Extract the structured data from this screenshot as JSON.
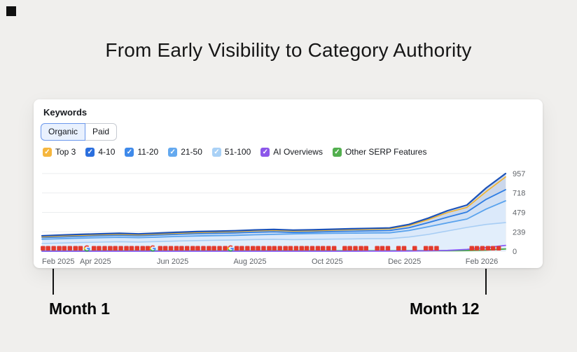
{
  "page": {
    "title": "From Early Visibility to Category Authority",
    "background": "#f0efed"
  },
  "icons": {
    "checkbox_check": "✓"
  },
  "card": {
    "header": "Keywords",
    "tabs": [
      {
        "label": "Organic",
        "active": true
      },
      {
        "label": "Paid",
        "active": false
      }
    ],
    "legend": [
      {
        "label": "Top 3",
        "color": "#F5B63E"
      },
      {
        "label": "4-10",
        "color": "#2B6FDE"
      },
      {
        "label": "11-20",
        "color": "#3F8AEA"
      },
      {
        "label": "21-50",
        "color": "#64A9EF"
      },
      {
        "label": "51-100",
        "color": "#A9D1F6"
      },
      {
        "label": "AI Overviews",
        "color": "#8C57EA"
      },
      {
        "label": "Other SERP Features",
        "color": "#52AF4E"
      }
    ]
  },
  "chart_data": {
    "type": "area",
    "title": "",
    "xlabel": "",
    "ylabel": "",
    "x_labels": [
      "Feb 2025",
      "Apr 2025",
      "Jun 2025",
      "Aug 2025",
      "Oct 2025",
      "Dec 2025",
      "Feb 2026"
    ],
    "y_ticks": [
      0,
      239,
      479,
      718,
      957
    ],
    "ylim": [
      0,
      957
    ],
    "grid": "horizontal",
    "legend_position": "top",
    "series": [
      {
        "name": "4-10",
        "color": "#1D53B8",
        "width": 2.2,
        "band_fill": "#CBD7EB",
        "values": [
          190,
          200,
          208,
          215,
          221,
          214,
          223,
          234,
          242,
          247,
          253,
          262,
          269,
          260,
          264,
          271,
          277,
          282,
          287,
          330,
          408,
          500,
          569,
          780,
          957
        ]
      },
      {
        "name": "Top 3",
        "color": "#F2B32B",
        "width": 1.6,
        "band_fill": null,
        "values": [
          178,
          188,
          196,
          203,
          209,
          202,
          211,
          222,
          230,
          235,
          241,
          250,
          257,
          248,
          252,
          259,
          265,
          270,
          275,
          316,
          390,
          478,
          540,
          735,
          915
        ]
      },
      {
        "name": "11-20",
        "color": "#2E7DE3",
        "width": 1.8,
        "band_fill": "#D2E1F5",
        "values": [
          168,
          176,
          184,
          191,
          197,
          191,
          199,
          209,
          216,
          221,
          226,
          234,
          240,
          232,
          236,
          242,
          247,
          251,
          255,
          290,
          353,
          420,
          483,
          640,
          758
        ]
      },
      {
        "name": "21-50",
        "color": "#5AA3ED",
        "width": 1.8,
        "band_fill": "#DBE9FA",
        "values": [
          147,
          154,
          161,
          167,
          172,
          167,
          174,
          182,
          188,
          192,
          196,
          203,
          208,
          214,
          218,
          221,
          223,
          225,
          227,
          255,
          302,
          350,
          397,
          520,
          621
        ]
      },
      {
        "name": "51-100",
        "color": "#A7CDF4",
        "width": 1.6,
        "band_fill": "#E2EEFB",
        "values": [
          95,
          101,
          107,
          112,
          117,
          113,
          119,
          126,
          131,
          135,
          139,
          144,
          147,
          143,
          146,
          149,
          152,
          154,
          156,
          175,
          207,
          250,
          293,
          330,
          353
        ]
      },
      {
        "name": "AI Overviews",
        "color": "#8B5CF6",
        "width": 1.8,
        "band_fill": null,
        "values": [
          0,
          0,
          0,
          0,
          0,
          0,
          0,
          0,
          0,
          0,
          0,
          0,
          0,
          0,
          0,
          0,
          0,
          1,
          2,
          3,
          5,
          10,
          22,
          45,
          72
        ]
      },
      {
        "name": "Other SERP Features",
        "color": "#4CAE4F",
        "width": 2,
        "band_fill": null,
        "values": [
          3,
          3,
          3,
          4,
          4,
          4,
          4,
          4,
          4,
          4,
          4,
          5,
          5,
          5,
          5,
          5,
          5,
          5,
          5,
          6,
          6,
          7,
          9,
          14,
          28
        ]
      }
    ],
    "note_markers": {
      "color": "#E23B2E",
      "positions": [
        0.002,
        0.013,
        0.025,
        0.037,
        0.048,
        0.06,
        0.072,
        0.083,
        0.112,
        0.123,
        0.135,
        0.147,
        0.158,
        0.17,
        0.182,
        0.193,
        0.205,
        0.217,
        0.228,
        0.255,
        0.266,
        0.278,
        0.29,
        0.301,
        0.313,
        0.325,
        0.336,
        0.348,
        0.36,
        0.371,
        0.383,
        0.395,
        0.42,
        0.431,
        0.443,
        0.455,
        0.466,
        0.478,
        0.49,
        0.501,
        0.513,
        0.525,
        0.536,
        0.548,
        0.56,
        0.571,
        0.583,
        0.595,
        0.606,
        0.618,
        0.63,
        0.653,
        0.664,
        0.676,
        0.688,
        0.699,
        0.723,
        0.734,
        0.746,
        0.769,
        0.781,
        0.804,
        0.828,
        0.839,
        0.851,
        0.927,
        0.938,
        0.95,
        0.962,
        0.973,
        0.985
      ]
    },
    "google_update_markers": {
      "positions": [
        0.097,
        0.239,
        0.407
      ]
    }
  },
  "annotations": {
    "month1": "Month 1",
    "month12": "Month 12"
  }
}
